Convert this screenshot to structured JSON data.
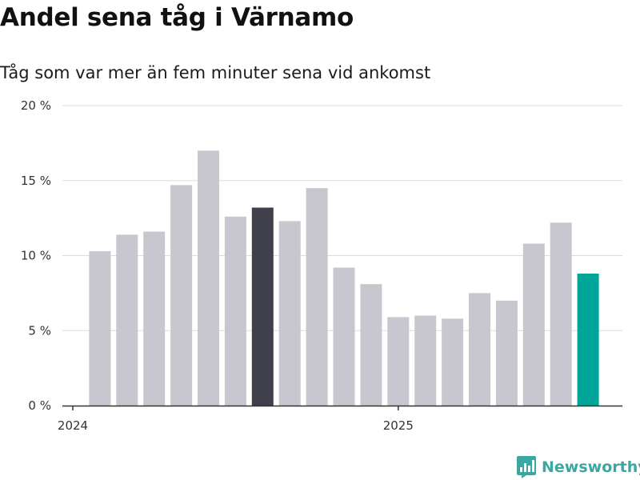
{
  "title": "Andel sena tåg i Värnamo",
  "subtitle": "Tåg som var mer än fem minuter sena vid ankomst",
  "brand": {
    "name": "Newsworthy",
    "icon": "newsworthy-logo-icon",
    "color": "#3aa8a0"
  },
  "chart_data": {
    "type": "bar",
    "title": "Andel sena tåg i Värnamo",
    "subtitle": "Tåg som var mer än fem minuter sena vid ankomst",
    "xlabel": "",
    "ylabel": "",
    "ylim": [
      0,
      20
    ],
    "y_ticks": [
      0,
      5,
      10,
      15,
      20
    ],
    "y_tick_labels": [
      "0 %",
      "5 %",
      "10 %",
      "15 %",
      "20 %"
    ],
    "x_ticks": [
      {
        "label": "2024",
        "month_index": 0
      },
      {
        "label": "2025",
        "month_index": 12
      }
    ],
    "grid": true,
    "values": [
      10.3,
      11.4,
      11.6,
      14.7,
      17.0,
      12.6,
      13.2,
      12.3,
      14.5,
      9.2,
      8.1,
      5.9,
      6.0,
      5.8,
      7.5,
      7.0,
      10.8,
      12.2,
      8.8
    ],
    "first_bar_month_index": 1,
    "colors": {
      "default": "#c8c7cf",
      "highlight": "#403f4c",
      "latest": "#00a59a"
    },
    "highlight_index": 6,
    "latest_index": 18
  }
}
